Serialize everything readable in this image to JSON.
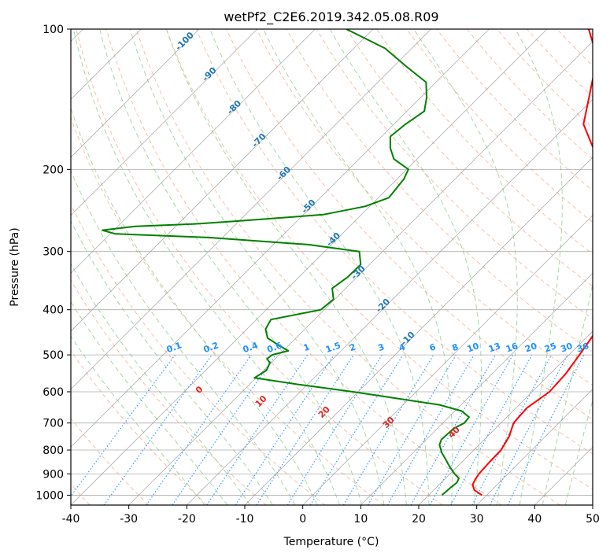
{
  "chart_data": {
    "type": "line",
    "subtype": "skew-t log-p diagram",
    "title": "wetPf2_C2E6.2019.342.05.08.R09",
    "xlabel": "Temperature (°C)",
    "ylabel": "Pressure (hPa)",
    "xlim": [
      -40,
      50
    ],
    "ylim": [
      1050,
      100
    ],
    "y_scale": "log",
    "grid": true,
    "x_ticks": [
      "-40",
      "-30",
      "-20",
      "-10",
      "0",
      "10",
      "20",
      "30",
      "40",
      "50"
    ],
    "y_ticks": [
      "100",
      "200",
      "300",
      "400",
      "500",
      "600",
      "700",
      "800",
      "900",
      "1000"
    ],
    "colors": {
      "temperature": "#ff0000",
      "dewpoint": "#008000",
      "dry_adiabat": "#f4a582",
      "moist_adiabat": "#8fcf8f",
      "mixing_ratio": "#1e90ff",
      "isotherm": "#999999",
      "dry_adiabat_label": "#d62728",
      "moist_adiabat_label": "#1f77b4"
    },
    "series": [
      {
        "name": "temperature",
        "pressure": [
          1000,
          975,
          950,
          925,
          900,
          850,
          800,
          750,
          700,
          650,
          600,
          550,
          500,
          450,
          400,
          350,
          300,
          250,
          220,
          200,
          180,
          160,
          140,
          120,
          110,
          100
        ],
        "values": [
          29.2,
          27.0,
          25.8,
          25.3,
          25.0,
          24.8,
          24.7,
          23.8,
          22.2,
          21.9,
          23.0,
          22.7,
          21.8,
          20.7,
          17.5,
          12.5,
          6.3,
          0.8,
          -3.8,
          -7.0,
          -11.5,
          -17.3,
          -21.0,
          -25.3,
          -28.5,
          -32.8
        ]
      },
      {
        "name": "dewpoint",
        "pressure": [
          1000,
          980,
          960,
          940,
          920,
          900,
          870,
          840,
          810,
          780,
          760,
          740,
          720,
          700,
          680,
          660,
          640,
          620,
          600,
          580,
          560,
          540,
          520,
          510,
          500,
          490,
          480,
          460,
          440,
          420,
          400,
          380,
          360,
          340,
          320,
          300,
          290,
          280,
          275,
          270,
          265,
          262,
          258,
          250,
          240,
          230,
          220,
          210,
          200,
          190,
          180,
          170,
          160,
          150,
          140,
          130,
          120,
          110,
          100
        ],
        "values": [
          22.3,
          22.4,
          22.5,
          22.7,
          22.3,
          20.8,
          18.8,
          16.9,
          14.9,
          13.2,
          12.6,
          12.7,
          12.8,
          13.7,
          13.5,
          11.2,
          6.3,
          -2.2,
          -10.9,
          -20.9,
          -30.3,
          -29.5,
          -30.2,
          -31.4,
          -31.2,
          -29.1,
          -31.1,
          -34.9,
          -36.8,
          -37.5,
          -30.6,
          -30.2,
          -32.3,
          -31.6,
          -31.5,
          -34.0,
          -44.0,
          -62.4,
          -79.1,
          -82.0,
          -77.0,
          -67.4,
          -60.1,
          -46.6,
          -40.8,
          -38.2,
          -38.5,
          -38.8,
          -39.7,
          -44.0,
          -46.5,
          -48.5,
          -48.0,
          -47.0,
          -49.0,
          -51.7,
          -58.0,
          -64.6,
          -74.6
        ]
      }
    ],
    "dry_adiabat_labels": [
      "0",
      "10",
      "20",
      "30",
      "40"
    ],
    "moist_adiabat_labels": [
      "-100",
      "-90",
      "-80",
      "-70",
      "-60",
      "-50",
      "-40",
      "-30",
      "-20",
      "-10"
    ],
    "mixing_ratio_labels": [
      "0.1",
      "0.2",
      "0.4",
      "0.6",
      "1",
      "1.5",
      "2",
      "3",
      "4",
      "6",
      "8",
      "10",
      "13",
      "16",
      "20",
      "25",
      "30",
      "36"
    ]
  }
}
